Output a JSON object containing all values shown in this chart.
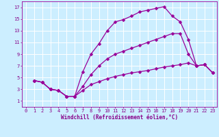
{
  "bg_color": "#cceeff",
  "grid_color": "#ffffff",
  "line_color": "#990099",
  "marker": "D",
  "markersize": 2.5,
  "linewidth": 0.9,
  "xlabel": "Windchill (Refroidissement éolien,°C)",
  "xlabel_color": "#880088",
  "xlabel_fontsize": 5.5,
  "tick_color": "#880088",
  "tick_fontsize": 5.0,
  "xlim": [
    -0.5,
    23.5
  ],
  "ylim": [
    0,
    18
  ],
  "xticks": [
    0,
    1,
    2,
    3,
    4,
    5,
    6,
    7,
    8,
    9,
    10,
    11,
    12,
    13,
    14,
    15,
    16,
    17,
    18,
    19,
    20,
    21,
    22,
    23
  ],
  "yticks": [
    1,
    3,
    5,
    7,
    9,
    11,
    13,
    15,
    17
  ],
  "series": [
    {
      "x": [
        1,
        2,
        3,
        4,
        5,
        6,
        7,
        8,
        9,
        10,
        11,
        12,
        13,
        14,
        15,
        16,
        17,
        18,
        19,
        20,
        21,
        22,
        23
      ],
      "y": [
        4.5,
        4.2,
        3.0,
        2.8,
        1.8,
        1.8,
        2.8,
        3.8,
        4.3,
        4.8,
        5.2,
        5.5,
        5.8,
        6.0,
        6.2,
        6.5,
        6.8,
        7.0,
        7.2,
        7.5,
        7.0,
        7.2,
        5.8
      ]
    },
    {
      "x": [
        1,
        2,
        3,
        4,
        5,
        6,
        7,
        8,
        9,
        10,
        11,
        12,
        13,
        14,
        15,
        16,
        17,
        18,
        19,
        20,
        21,
        22,
        23
      ],
      "y": [
        4.5,
        4.2,
        3.0,
        2.8,
        1.8,
        1.8,
        3.5,
        5.5,
        7.0,
        8.2,
        9.0,
        9.5,
        10.0,
        10.5,
        11.0,
        11.5,
        12.0,
        12.5,
        12.5,
        9.0,
        7.0,
        7.2,
        5.8
      ]
    },
    {
      "x": [
        1,
        2,
        3,
        4,
        5,
        6,
        7,
        8,
        9,
        10,
        11,
        12,
        13,
        14,
        15,
        16,
        17,
        18,
        19,
        20,
        21,
        22,
        23
      ],
      "y": [
        4.5,
        4.2,
        3.0,
        2.8,
        1.8,
        1.8,
        6.0,
        9.0,
        10.8,
        13.0,
        14.5,
        14.9,
        15.5,
        16.2,
        16.5,
        16.8,
        17.1,
        15.5,
        14.5,
        11.5,
        7.0,
        7.2,
        5.8
      ]
    }
  ]
}
